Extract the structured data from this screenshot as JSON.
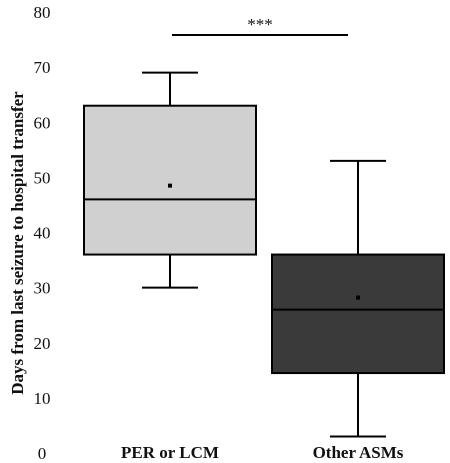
{
  "chart_data": {
    "type": "boxplot",
    "ylabel": "Days from last seizure to hospital transfer",
    "xlabel": "",
    "ylim": [
      0,
      80
    ],
    "yticks": [
      0,
      10,
      20,
      30,
      40,
      50,
      60,
      70,
      80
    ],
    "grid": false,
    "categories": [
      "PER or LCM",
      "Other ASMs"
    ],
    "boxes": [
      {
        "label": "PER or LCM",
        "min": 30,
        "q1": 36,
        "median": 46,
        "q3": 63,
        "max": 69,
        "mean": 48.5,
        "color": "#d0d0d0"
      },
      {
        "label": "Other ASMs",
        "min": 3,
        "q1": 14.5,
        "median": 26,
        "q3": 36,
        "max": 53,
        "mean": 28.2,
        "color": "#3a3a3a"
      }
    ],
    "annotations": [
      {
        "text": "***",
        "between": [
          "PER or LCM",
          "Other ASMs"
        ]
      }
    ]
  }
}
